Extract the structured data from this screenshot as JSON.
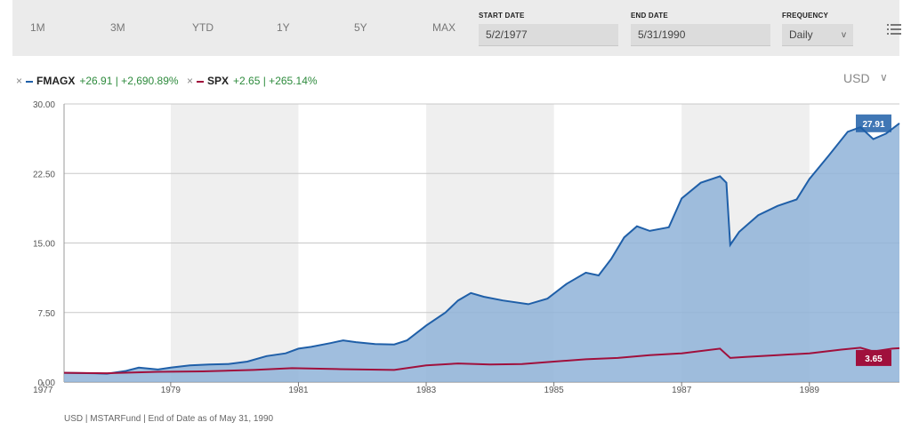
{
  "toolbar": {
    "ranges": [
      "1M",
      "3M",
      "YTD",
      "1Y",
      "5Y",
      "MAX"
    ],
    "start_date_label": "START DATE",
    "start_date_value": "5/2/1977",
    "end_date_label": "END DATE",
    "end_date_value": "5/31/1990",
    "frequency_label": "FREQUENCY",
    "frequency_value": "Daily",
    "frequency_chevron": "v",
    "menu_icon": "list-menu-icon"
  },
  "legend": {
    "fmagx": {
      "remove": "×",
      "ticker": "FMAGX",
      "stats": "+26.91 | +2,690.89%",
      "color": "#1f5fa8"
    },
    "spx": {
      "remove": "×",
      "ticker": "SPX",
      "stats": "+2.65 | +265.14%",
      "color": "#a0103c"
    }
  },
  "currency": {
    "label": "USD",
    "chevron": "∨"
  },
  "footnote": "USD | MSTARFund | End of Date as of May 31, 1990",
  "colors": {
    "fmagx_line": "#1f5fa8",
    "fmagx_fill": "#8fb3d8",
    "spx_line": "#a0103c",
    "band": "#efefef",
    "grid": "#c8c8c8",
    "positive_text": "#2e8b3d"
  },
  "chart_data": {
    "type": "area",
    "x_unit": "year",
    "xlim": [
      1977.33,
      1990.41
    ],
    "ylim": [
      0,
      30
    ],
    "yticks": [
      "30.00",
      "22.50",
      "15.00",
      "7.50",
      "0.00"
    ],
    "xticks": [
      "1977",
      "1979",
      "1981",
      "1983",
      "1985",
      "1987",
      "1989"
    ],
    "grid": true,
    "shaded_bands_years": [
      [
        1979,
        1981
      ],
      [
        1983,
        1985
      ],
      [
        1987,
        1989
      ]
    ],
    "series": [
      {
        "name": "FMAGX",
        "type": "area",
        "last_value_label": "27.91",
        "points": [
          [
            1977.33,
            1.0
          ],
          [
            1977.8,
            0.95
          ],
          [
            1978.0,
            0.9
          ],
          [
            1978.3,
            1.2
          ],
          [
            1978.5,
            1.55
          ],
          [
            1978.8,
            1.35
          ],
          [
            1979.0,
            1.55
          ],
          [
            1979.3,
            1.8
          ],
          [
            1979.6,
            1.9
          ],
          [
            1979.9,
            1.95
          ],
          [
            1980.2,
            2.2
          ],
          [
            1980.5,
            2.8
          ],
          [
            1980.8,
            3.1
          ],
          [
            1981.0,
            3.6
          ],
          [
            1981.2,
            3.8
          ],
          [
            1981.5,
            4.2
          ],
          [
            1981.7,
            4.5
          ],
          [
            1981.9,
            4.3
          ],
          [
            1982.2,
            4.1
          ],
          [
            1982.5,
            4.05
          ],
          [
            1982.7,
            4.5
          ],
          [
            1983.0,
            6.1
          ],
          [
            1983.3,
            7.5
          ],
          [
            1983.5,
            8.8
          ],
          [
            1983.7,
            9.6
          ],
          [
            1983.9,
            9.2
          ],
          [
            1984.2,
            8.8
          ],
          [
            1984.6,
            8.4
          ],
          [
            1984.9,
            9.0
          ],
          [
            1985.2,
            10.6
          ],
          [
            1985.5,
            11.8
          ],
          [
            1985.7,
            11.5
          ],
          [
            1985.9,
            13.3
          ],
          [
            1986.1,
            15.6
          ],
          [
            1986.3,
            16.8
          ],
          [
            1986.5,
            16.3
          ],
          [
            1986.8,
            16.7
          ],
          [
            1987.0,
            19.8
          ],
          [
            1987.3,
            21.5
          ],
          [
            1987.6,
            22.2
          ],
          [
            1987.7,
            21.5
          ],
          [
            1987.76,
            14.8
          ],
          [
            1987.9,
            16.2
          ],
          [
            1988.2,
            18.0
          ],
          [
            1988.5,
            19.0
          ],
          [
            1988.8,
            19.7
          ],
          [
            1989.0,
            21.9
          ],
          [
            1989.3,
            24.4
          ],
          [
            1989.6,
            27.0
          ],
          [
            1989.8,
            27.5
          ],
          [
            1990.0,
            26.2
          ],
          [
            1990.2,
            26.8
          ],
          [
            1990.41,
            27.91
          ]
        ]
      },
      {
        "name": "SPX",
        "type": "line",
        "last_value_label": "3.65",
        "points": [
          [
            1977.33,
            1.0
          ],
          [
            1978.0,
            0.95
          ],
          [
            1978.8,
            1.1
          ],
          [
            1979.5,
            1.15
          ],
          [
            1980.3,
            1.3
          ],
          [
            1980.9,
            1.5
          ],
          [
            1981.6,
            1.4
          ],
          [
            1982.5,
            1.3
          ],
          [
            1983.0,
            1.8
          ],
          [
            1983.5,
            2.0
          ],
          [
            1984.0,
            1.9
          ],
          [
            1984.5,
            1.95
          ],
          [
            1985.0,
            2.2
          ],
          [
            1985.5,
            2.45
          ],
          [
            1986.0,
            2.6
          ],
          [
            1986.5,
            2.9
          ],
          [
            1987.0,
            3.1
          ],
          [
            1987.6,
            3.6
          ],
          [
            1987.76,
            2.6
          ],
          [
            1988.0,
            2.7
          ],
          [
            1988.5,
            2.9
          ],
          [
            1989.0,
            3.1
          ],
          [
            1989.5,
            3.5
          ],
          [
            1989.8,
            3.7
          ],
          [
            1990.0,
            3.3
          ],
          [
            1990.3,
            3.6
          ],
          [
            1990.41,
            3.65
          ]
        ]
      }
    ]
  }
}
